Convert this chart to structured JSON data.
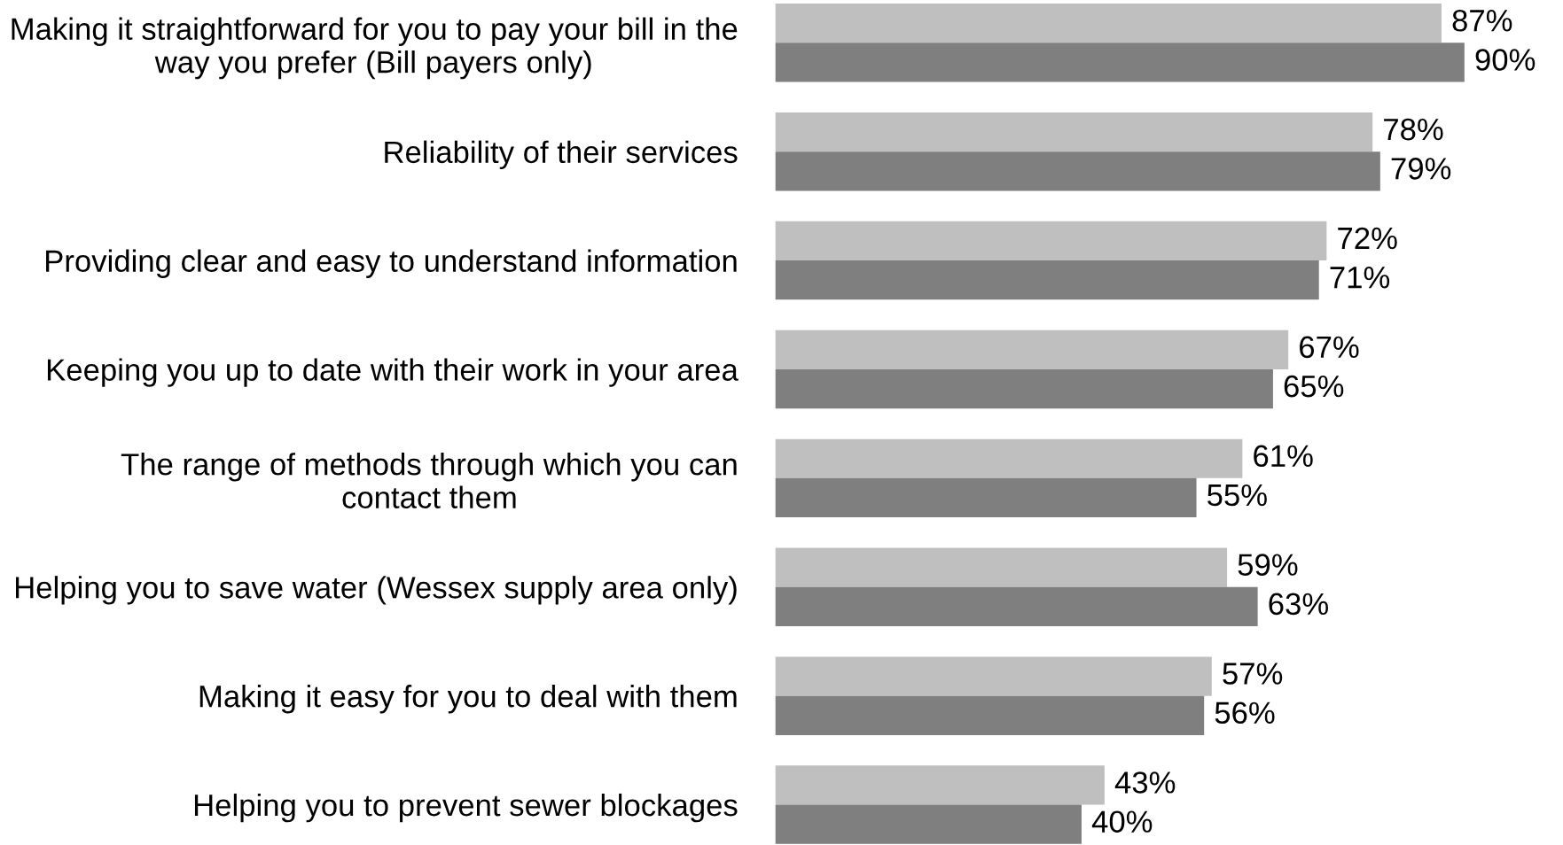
{
  "chart_data": {
    "type": "bar",
    "orientation": "horizontal",
    "categories": [
      "Making it straightforward for you to pay your bill in the\nway you prefer (Bill payers only)",
      "Reliability of their services",
      "Providing clear and easy to understand information",
      "Keeping you up to date with their work in your area",
      "The range of methods through which you can\ncontact them",
      "Helping you to save water (Wessex supply area only)",
      "Making it easy for you to deal with them",
      "Helping you to prevent sewer blockages"
    ],
    "series": [
      {
        "color": "#bfbfbf",
        "values": [
          87,
          78,
          72,
          67,
          61,
          59,
          57,
          43
        ],
        "value_labels": [
          "87%",
          "78%",
          "72%",
          "67%",
          "61%",
          "59%",
          "57%",
          "43%"
        ]
      },
      {
        "color": "#7f7f7f",
        "values": [
          90,
          79,
          71,
          65,
          55,
          63,
          56,
          40
        ],
        "value_labels": [
          "90%",
          "79%",
          "71%",
          "65%",
          "55%",
          "63%",
          "56%",
          "40%"
        ]
      }
    ],
    "tick_labels": "y",
    "grid": false,
    "legend": false
  }
}
